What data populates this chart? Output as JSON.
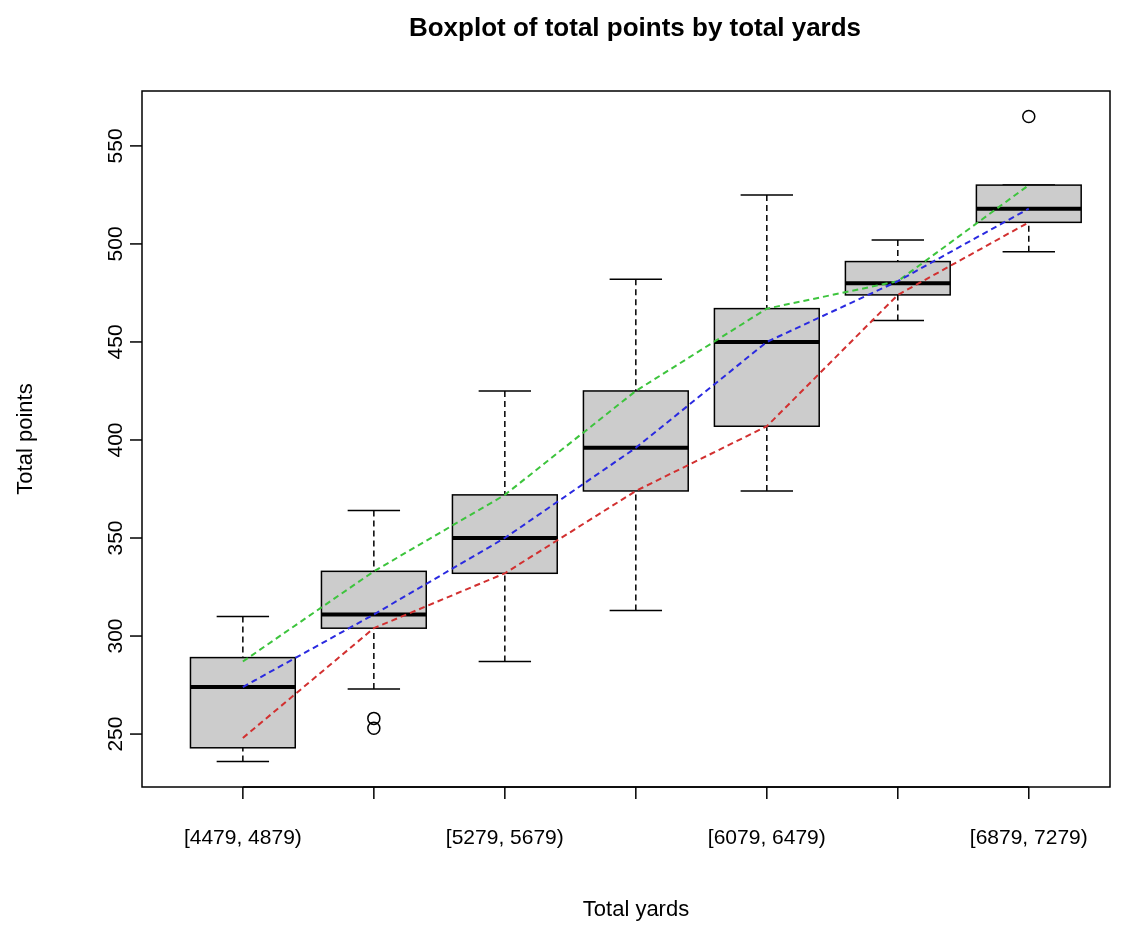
{
  "chart_data": {
    "type": "box",
    "title": "Boxplot of total points by total yards",
    "xlabel": "Total yards",
    "ylabel": "Total points",
    "categories": [
      "[4479, 4879)",
      null,
      "[5279, 5679)",
      null,
      "[6079, 6479)",
      null,
      "[6879, 7279)"
    ],
    "ylim": [
      223,
      578
    ],
    "yticks": [
      250,
      300,
      350,
      400,
      450,
      500,
      550
    ],
    "line_style": "dashed",
    "series": [
      {
        "type": "box",
        "color": "#cccccc",
        "boxes": [
          {
            "low": 236,
            "q1": 243,
            "median": 274,
            "q3": 289,
            "high": 310
          },
          {
            "low": 273,
            "q1": 304,
            "median": 311,
            "q3": 333,
            "high": 364,
            "outliers": [
              258,
              253
            ]
          },
          {
            "low": 287,
            "q1": 332,
            "median": 350,
            "q3": 372,
            "high": 425
          },
          {
            "low": 313,
            "q1": 374,
            "median": 396,
            "q3": 425,
            "high": 482
          },
          {
            "low": 374,
            "q1": 407,
            "median": 450,
            "q3": 467,
            "high": 525
          },
          {
            "low": 461,
            "q1": 474,
            "median": 480,
            "q3": 491,
            "high": 502
          },
          {
            "low": 496,
            "q1": 511,
            "median": 518,
            "q3": 530,
            "high": 530,
            "outliers": [
              565
            ]
          }
        ]
      },
      {
        "type": "line",
        "color": "#3dc43d",
        "values": [
          287,
          333,
          372,
          425,
          467,
          481,
          530
        ]
      },
      {
        "type": "line",
        "color": "#2a2ae0",
        "values": [
          274,
          311,
          350,
          396,
          450,
          481,
          518
        ]
      },
      {
        "type": "line",
        "color": "#d23030",
        "values": [
          248,
          304,
          332,
          374,
          407,
          474,
          511
        ]
      }
    ]
  }
}
